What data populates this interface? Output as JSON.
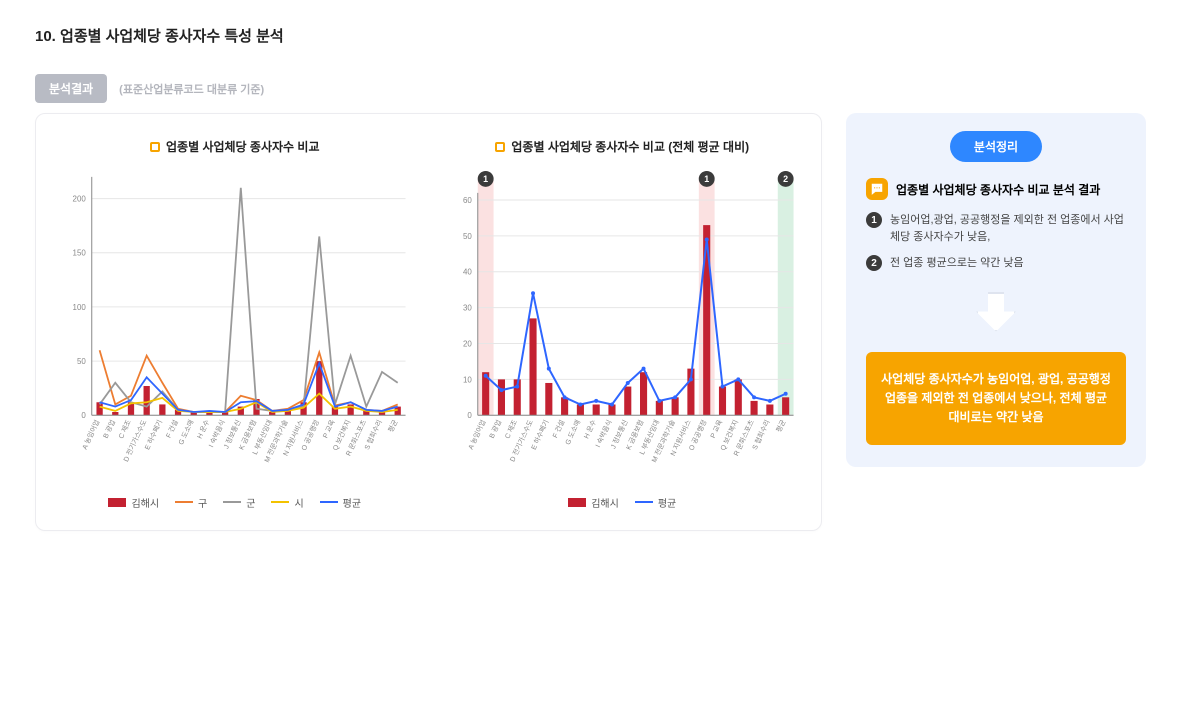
{
  "page_title": "10. 업종별 사업체당 종사자수 특성 분석",
  "result_badge": "분석결과",
  "sub_note": "(표준산업분류코드 대분류 기준)",
  "chart1": {
    "title": "업종별 사업체당 종사자수 비교",
    "type": "bar+line",
    "categories": [
      "A 농임어업",
      "B 광업",
      "C 제조",
      "D 전기가스수도",
      "E 하수폐기",
      "F 건설",
      "G 도소매",
      "H 운수",
      "I 숙박음식",
      "J 정보통신",
      "K 금융보험",
      "L 부동산임대",
      "M 전문과학기술",
      "N 지원서비스",
      "O 공공행정",
      "P 교육",
      "Q 보건복지",
      "R 문화스포츠",
      "S 협회수리",
      "평균"
    ],
    "bar_series": {
      "name": "김해시",
      "color": "#c32131",
      "values": [
        12,
        3,
        12,
        27,
        10,
        5,
        3,
        3,
        3,
        8,
        15,
        3,
        5,
        12,
        50,
        8,
        10,
        5,
        3,
        8
      ]
    },
    "line_series": [
      {
        "name": "구",
        "color": "#ed7d31",
        "values": [
          60,
          10,
          18,
          55,
          30,
          6,
          3,
          3,
          3,
          18,
          14,
          4,
          6,
          14,
          58,
          9,
          12,
          5,
          4,
          10
        ]
      },
      {
        "name": "군",
        "color": "#999999",
        "values": [
          10,
          30,
          12,
          8,
          22,
          5,
          3,
          3,
          3,
          210,
          6,
          4,
          5,
          8,
          165,
          10,
          55,
          8,
          40,
          30
        ]
      },
      {
        "name": "시",
        "color": "#f3c200",
        "values": [
          8,
          4,
          11,
          12,
          16,
          4,
          3,
          3,
          3,
          6,
          12,
          3,
          4,
          7,
          20,
          6,
          8,
          4,
          3,
          5
        ]
      },
      {
        "name": "평균",
        "color": "#2e66ff",
        "values": [
          12,
          8,
          14,
          35,
          20,
          5,
          3,
          4,
          3,
          12,
          13,
          4,
          5,
          10,
          48,
          8,
          12,
          5,
          4,
          8
        ]
      }
    ],
    "ylim": [
      0,
      220
    ],
    "yticks": [
      0,
      50,
      100,
      150,
      200
    ],
    "grid_color": "#e6e6e6"
  },
  "chart2": {
    "title": "업종별 사업체당 종사자수 비교 (전체 평균 대비)",
    "type": "bar+line",
    "categories": [
      "A 농임어업",
      "B 광업",
      "C 제조",
      "D 전기가스수도",
      "E 하수폐기",
      "F 건설",
      "G 도소매",
      "H 운수",
      "I 숙박음식",
      "J 정보통신",
      "K 금융보험",
      "L 부동산임대",
      "M 전문과학기술",
      "N 지원서비스",
      "O 공공행정",
      "P 교육",
      "Q 보건복지",
      "R 문화스포츠",
      "S 협회수리",
      "평균"
    ],
    "bar_series": {
      "name": "김해시",
      "color": "#c32131",
      "values": [
        12,
        10,
        10,
        27,
        9,
        5,
        3,
        3,
        3,
        8,
        12,
        4,
        5,
        13,
        53,
        8,
        10,
        4,
        3,
        5
      ]
    },
    "line_series": {
      "name": "평균",
      "color": "#2e66ff",
      "values": [
        11,
        7,
        8,
        34,
        13,
        5,
        3,
        4,
        3,
        9,
        13,
        4,
        5,
        10,
        49,
        8,
        10,
        5,
        4,
        6
      ]
    },
    "ylim": [
      0,
      62
    ],
    "yticks": [
      0,
      10,
      20,
      30,
      40,
      50,
      60
    ],
    "grid_color": "#e6e6e6",
    "highlights": [
      {
        "index": 0,
        "color": "#fbe1e1",
        "badge": "1"
      },
      {
        "index": 14,
        "color": "#fbe1e1",
        "badge": "1"
      },
      {
        "index": 19,
        "color": "#d9f0e2",
        "badge": "2"
      }
    ]
  },
  "summary": {
    "badge": "분석정리",
    "heading": "업종별 사업체당 종사자수 비교 분석 결과",
    "points": [
      {
        "num": "1",
        "text": "농임어업,광업, 공공행정을 제외한 전 업종에서 사업체당 종사자수가 낮음,"
      },
      {
        "num": "2",
        "text": "전 업종 평균으로는 약간 낮음"
      }
    ],
    "conclusion": "사업체당 종사자수가 농임어업, 광업, 공공행정업종을 제외한 전 업종에서 낮으나, 전체 평균 대비로는 약간 낮음"
  },
  "legend_labels": {
    "gimhae": "김해시",
    "gu": "구",
    "gun": "군",
    "si": "시",
    "avg": "평균"
  }
}
